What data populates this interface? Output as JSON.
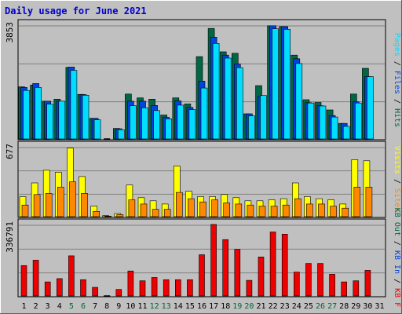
{
  "colors": {
    "frame_bg": "#c0c0c0",
    "panel_bg": "#c0c0c0",
    "grid": "#808080",
    "title": "#0000cc",
    "hits": "#006644",
    "files": "#0044dd",
    "pages": "#00ddff",
    "visits": "#ffff00",
    "sites": "#ff8800",
    "kb": "#ee0000",
    "weekend": "#006633",
    "weekday": "#000000"
  },
  "chart_data": [
    {
      "type": "bar",
      "title": "Daily usage for June 2021",
      "panel": "requests",
      "ymax_label": "3853",
      "ylim": [
        0,
        3853
      ],
      "categories": [
        "1",
        "2",
        "3",
        "4",
        "5",
        "6",
        "7",
        "8",
        "9",
        "10",
        "11",
        "12",
        "13",
        "14",
        "15",
        "16",
        "17",
        "18",
        "19",
        "20",
        "21",
        "22",
        "23",
        "24",
        "25",
        "26",
        "27",
        "28",
        "29",
        "30",
        "31"
      ],
      "series": [
        {
          "name": "Hits",
          "color_key": "hits",
          "values": [
            1740,
            1800,
            1260,
            1330,
            2390,
            1490,
            690,
            0,
            350,
            1500,
            1370,
            1330,
            800,
            1370,
            1170,
            2750,
            3690,
            2910,
            2860,
            840,
            1780,
            3780,
            3750,
            2800,
            1310,
            1220,
            970,
            520,
            1500,
            2360,
            0
          ]
        },
        {
          "name": "Files",
          "color_key": "files",
          "values": [
            1720,
            1850,
            1260,
            1260,
            2400,
            1480,
            690,
            0,
            340,
            1260,
            1260,
            1120,
            720,
            1270,
            1050,
            1930,
            3400,
            2800,
            2500,
            840,
            1420,
            3780,
            3750,
            2680,
            1210,
            1110,
            780,
            520,
            1240,
            2080,
            0
          ]
        },
        {
          "name": "Pages",
          "color_key": "pages",
          "values": [
            1620,
            1720,
            1160,
            1260,
            2290,
            1460,
            640,
            0,
            310,
            1110,
            1040,
            950,
            670,
            1130,
            980,
            1700,
            3190,
            2700,
            2380,
            770,
            1450,
            3680,
            3660,
            2520,
            1200,
            1100,
            730,
            420,
            1200,
            2080,
            0
          ]
        }
      ]
    },
    {
      "type": "bar",
      "panel": "visitors",
      "ymax_label": "677",
      "ylim": [
        0,
        677
      ],
      "categories": [
        "1",
        "2",
        "3",
        "4",
        "5",
        "6",
        "7",
        "8",
        "9",
        "10",
        "11",
        "12",
        "13",
        "14",
        "15",
        "16",
        "17",
        "18",
        "19",
        "20",
        "21",
        "22",
        "23",
        "24",
        "25",
        "26",
        "27",
        "28",
        "29",
        "30",
        "31"
      ],
      "series": [
        {
          "name": "Visits",
          "color_key": "visits",
          "values": [
            190,
            320,
            440,
            420,
            650,
            380,
            100,
            10,
            30,
            300,
            180,
            150,
            120,
            480,
            240,
            190,
            190,
            210,
            180,
            150,
            150,
            160,
            170,
            320,
            190,
            170,
            160,
            120,
            540,
            530,
            0
          ]
        },
        {
          "name": "Sites",
          "color_key": "sites",
          "values": [
            110,
            210,
            220,
            280,
            330,
            220,
            50,
            5,
            20,
            160,
            120,
            70,
            70,
            230,
            170,
            140,
            160,
            130,
            120,
            110,
            100,
            100,
            110,
            170,
            120,
            120,
            100,
            80,
            280,
            280,
            0
          ]
        }
      ]
    },
    {
      "type": "bar",
      "panel": "kbytes",
      "ymax_label": "336791",
      "ylim": [
        0,
        336791
      ],
      "categories": [
        "1",
        "2",
        "3",
        "4",
        "5",
        "6",
        "7",
        "8",
        "9",
        "10",
        "11",
        "12",
        "13",
        "14",
        "15",
        "16",
        "17",
        "18",
        "19",
        "20",
        "21",
        "22",
        "23",
        "24",
        "25",
        "26",
        "27",
        "28",
        "29",
        "30",
        "31"
      ],
      "series": [
        {
          "name": "KB F",
          "color_key": "kb",
          "values": [
            140000,
            165000,
            65000,
            80000,
            185000,
            75000,
            40000,
            0,
            30000,
            115000,
            70000,
            85000,
            75000,
            75000,
            75000,
            190000,
            330000,
            260000,
            215000,
            72000,
            180000,
            295000,
            285000,
            110000,
            150000,
            150000,
            100000,
            65000,
            70000,
            118000,
            0
          ]
        }
      ]
    }
  ],
  "x_labels": [
    {
      "day": "1",
      "weekend": false
    },
    {
      "day": "2",
      "weekend": false
    },
    {
      "day": "3",
      "weekend": false
    },
    {
      "day": "4",
      "weekend": false
    },
    {
      "day": "5",
      "weekend": true
    },
    {
      "day": "6",
      "weekend": true
    },
    {
      "day": "7",
      "weekend": false
    },
    {
      "day": "8",
      "weekend": false
    },
    {
      "day": "9",
      "weekend": false
    },
    {
      "day": "10",
      "weekend": false
    },
    {
      "day": "11",
      "weekend": false
    },
    {
      "day": "12",
      "weekend": true
    },
    {
      "day": "13",
      "weekend": true
    },
    {
      "day": "14",
      "weekend": false
    },
    {
      "day": "15",
      "weekend": false
    },
    {
      "day": "16",
      "weekend": false
    },
    {
      "day": "17",
      "weekend": false
    },
    {
      "day": "18",
      "weekend": false
    },
    {
      "day": "19",
      "weekend": true
    },
    {
      "day": "20",
      "weekend": true
    },
    {
      "day": "21",
      "weekend": false
    },
    {
      "day": "22",
      "weekend": false
    },
    {
      "day": "23",
      "weekend": false
    },
    {
      "day": "24",
      "weekend": false
    },
    {
      "day": "25",
      "weekend": false
    },
    {
      "day": "26",
      "weekend": true
    },
    {
      "day": "27",
      "weekend": true
    },
    {
      "day": "28",
      "weekend": false
    },
    {
      "day": "29",
      "weekend": false
    },
    {
      "day": "30",
      "weekend": false
    },
    {
      "day": "31",
      "weekend": false
    }
  ],
  "legends": {
    "top": [
      {
        "text": "Pages",
        "color_key": "pages"
      },
      {
        "text": " / ",
        "color_key": "weekday"
      },
      {
        "text": "Files",
        "color_key": "files"
      },
      {
        "text": " / ",
        "color_key": "weekday"
      },
      {
        "text": "Hits",
        "color_key": "hits"
      }
    ],
    "middle": [
      {
        "text": "Visits",
        "color_key": "visits"
      }
    ],
    "middle2": [
      {
        "text": "Sites",
        "color_key": "sites"
      }
    ],
    "bottom": [
      {
        "text": "KB Out",
        "color_key": "hits"
      },
      {
        "text": " / ",
        "color_key": "weekday"
      },
      {
        "text": "KB In",
        "color_key": "files"
      },
      {
        "text": " / ",
        "color_key": "weekday"
      },
      {
        "text": "KB F",
        "color_key": "kb"
      }
    ]
  }
}
